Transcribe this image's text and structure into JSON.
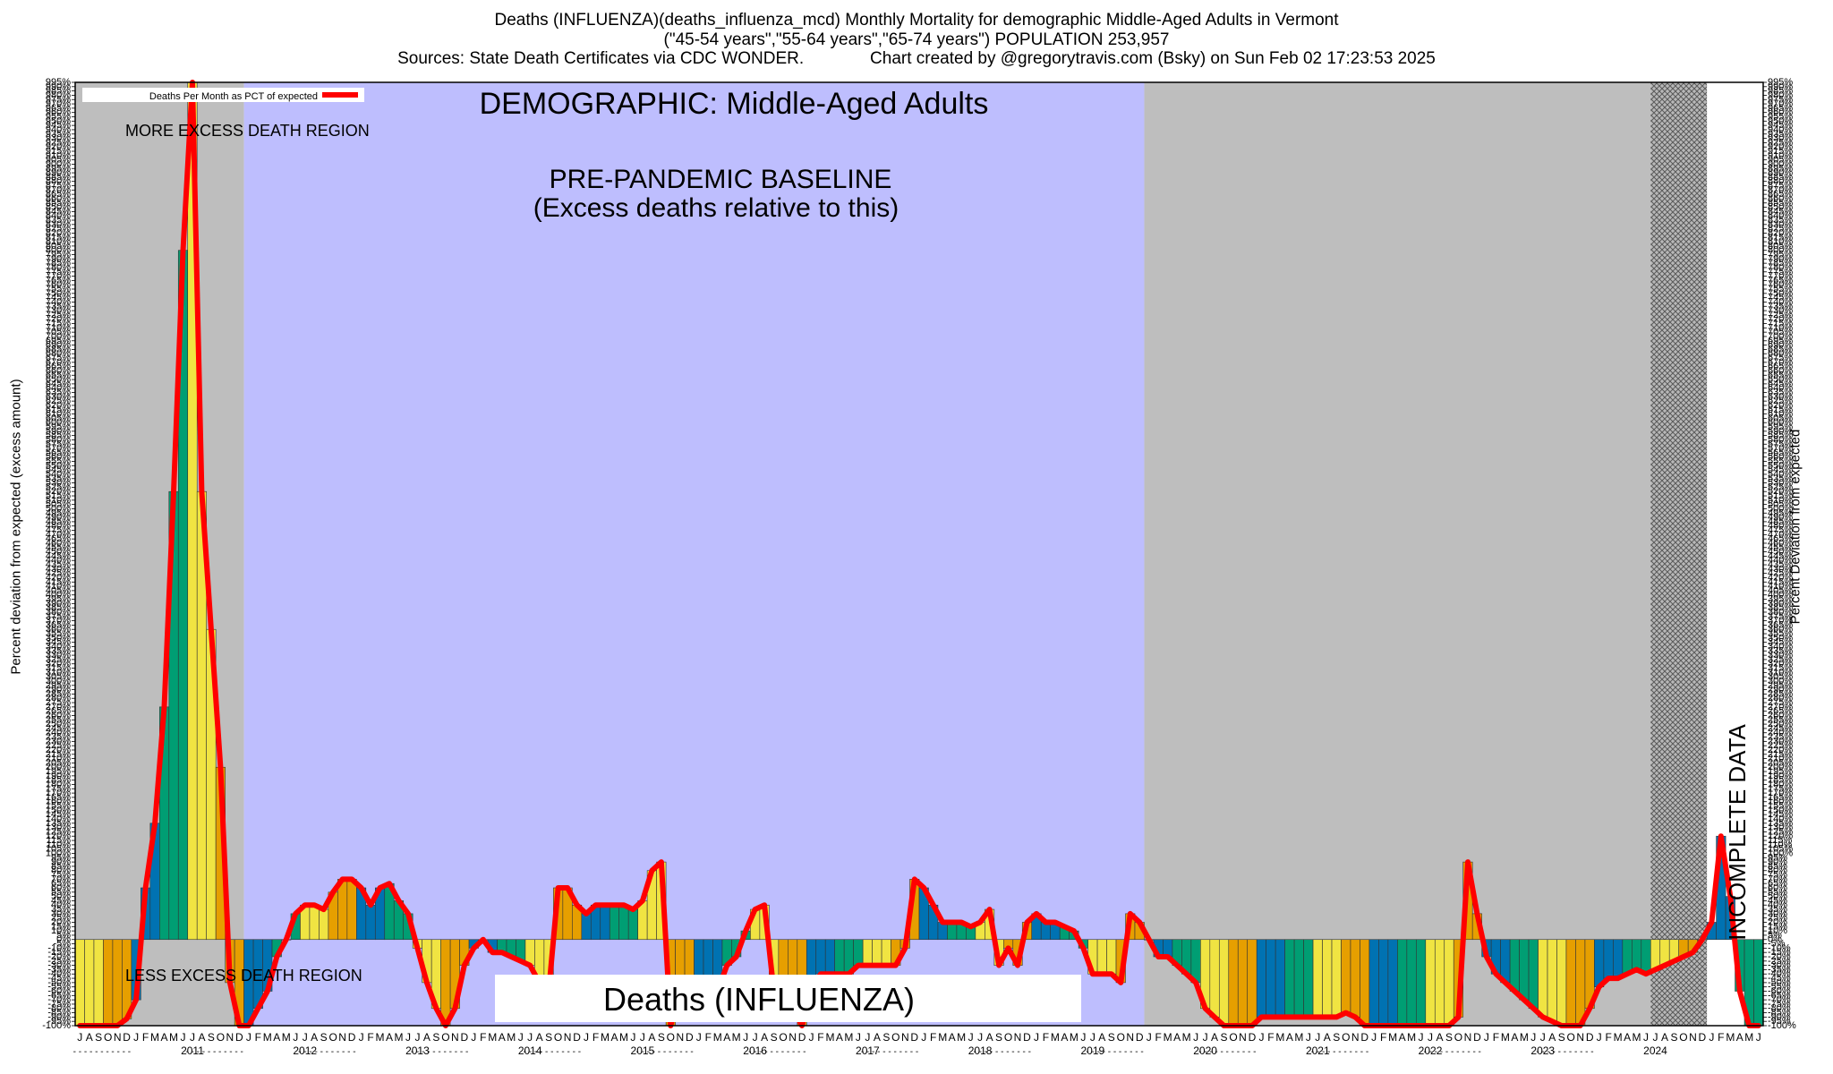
{
  "title": {
    "line1": "Deaths (INFLUENZA)(deaths_influenza_mcd) Monthly Mortality for demographic Middle-Aged Adults in Vermont",
    "line2": "(\"45-54 years\",\"55-64 years\",\"65-74 years\") POPULATION 253,957",
    "line3": "Sources: State Death Certificates via CDC WONDER.              Chart created by @gregorytravis.com (Bsky) on Sun Feb 02 17:23:53 2025"
  },
  "annotations": {
    "demographic": "DEMOGRAPHIC: Middle-Aged Adults",
    "baseline_line1": "PRE-PANDEMIC BASELINE",
    "baseline_line2": "(Excess deaths relative to this)",
    "more_region": "MORE EXCESS DEATH REGION",
    "less_region": "LESS EXCESS DEATH REGION",
    "cause_box": "Deaths (INFLUENZA)",
    "incomplete": "INCOMPLETE DATA"
  },
  "legend": {
    "label": "Deaths Per Month as PCT of expected"
  },
  "colors": {
    "background": "#ffffff",
    "grey_region": "#bebebe",
    "baseline_region": "#bebefe",
    "line": "#ff0000",
    "bar_palette": [
      "#f0e442",
      "#e69f00",
      "#0072b2",
      "#009e73"
    ]
  },
  "chart_data": {
    "type": "bar",
    "title": "Deaths (INFLUENZA)(deaths_influenza_mcd) Monthly Mortality for demographic Middle-Aged Adults in Vermont",
    "ylabel_left": "Percent deviation from expected (excess amount)",
    "ylabel_right": "Percent Deviation from expected",
    "ylim": [
      -100,
      995
    ],
    "y_ticks": [
      "-100%",
      "-95%",
      "-90%",
      "-85%",
      "-80%",
      "-75%",
      "-70%",
      "-65%",
      "-60%",
      "-55%",
      "-50%",
      "-45%",
      "-40%",
      "-35%",
      "-30%",
      "-25%",
      "-20%",
      "-15%",
      "-10%",
      "-5%",
      "0%",
      "5%",
      "10%",
      "15%",
      "20%",
      "25%",
      "30%",
      "35%",
      "40%",
      "45%",
      "50%",
      "55%",
      "60%",
      "65%",
      "70%",
      "75%",
      "80%",
      "85%",
      "90%",
      "95%",
      "100%",
      "105%",
      "110%",
      "115%",
      "120%",
      "125%",
      "130%",
      "135%",
      "140%",
      "145%",
      "150%",
      "155%",
      "160%",
      "165%",
      "170%",
      "175%",
      "180%",
      "185%",
      "190%",
      "195%",
      "200%",
      "205%",
      "210%",
      "215%",
      "220%",
      "225%",
      "230%",
      "235%",
      "240%",
      "245%",
      "250%",
      "255%",
      "260%",
      "265%",
      "270%",
      "275%",
      "280%",
      "285%",
      "290%",
      "295%",
      "300%",
      "305%",
      "310%",
      "315%",
      "320%",
      "325%",
      "330%",
      "335%",
      "340%",
      "345%",
      "350%",
      "355%",
      "360%",
      "365%",
      "370%",
      "375%",
      "380%",
      "385%",
      "390%",
      "395%",
      "400%",
      "405%",
      "410%",
      "415%",
      "420%",
      "425%",
      "430%",
      "435%",
      "440%",
      "445%",
      "450%",
      "455%",
      "460%",
      "465%",
      "470%",
      "475%",
      "480%",
      "485%",
      "490%",
      "495%",
      "500%",
      "505%",
      "510%",
      "515%",
      "520%",
      "525%",
      "530%",
      "535%",
      "540%",
      "545%",
      "550%",
      "555%",
      "560%",
      "565%",
      "570%",
      "575%",
      "580%",
      "585%",
      "590%",
      "595%",
      "600%",
      "605%",
      "610%",
      "615%",
      "620%",
      "625%",
      "630%",
      "635%",
      "640%",
      "645%",
      "650%",
      "655%",
      "660%",
      "665%",
      "670%",
      "675%",
      "680%",
      "685%",
      "690%",
      "695%",
      "700%",
      "705%",
      "710%",
      "715%",
      "720%",
      "725%",
      "730%",
      "735%",
      "740%",
      "745%",
      "750%",
      "755%",
      "760%",
      "765%",
      "770%",
      "775%",
      "780%",
      "785%",
      "790%",
      "795%",
      "800%",
      "805%",
      "810%",
      "815%",
      "820%",
      "825%",
      "830%",
      "835%",
      "840%",
      "845%",
      "850%",
      "855%",
      "860%",
      "865%",
      "870%",
      "875%",
      "880%",
      "885%",
      "890%",
      "895%",
      "900%",
      "905%",
      "910%",
      "915%",
      "920%",
      "925%",
      "930%",
      "935%",
      "940%",
      "945%",
      "950%",
      "955%",
      "960%",
      "965%",
      "970%",
      "975%",
      "980%",
      "985%",
      "990%",
      "995%"
    ],
    "start_month": "2010-07",
    "month_letters": [
      "J",
      "F",
      "M",
      "A",
      "M",
      "J",
      "J",
      "A",
      "S",
      "O",
      "N",
      "D"
    ],
    "years": [
      "2011",
      "2012",
      "2013",
      "2014",
      "2015",
      "2016",
      "2017",
      "2018",
      "2019",
      "2020",
      "2021",
      "2022",
      "2023",
      "2024"
    ],
    "regions": [
      {
        "name": "grey",
        "from_index": 0,
        "to_index": 18
      },
      {
        "name": "baseline",
        "from_index": 18,
        "to_index": 114
      },
      {
        "name": "grey",
        "from_index": 114,
        "to_index": 168
      },
      {
        "name": "incomplete",
        "from_index": 168,
        "to_index": 174
      }
    ],
    "series": [
      {
        "name": "Deaths Per Month as PCT of expected",
        "values": [
          -100,
          -100,
          -100,
          -100,
          -100,
          -92,
          -70,
          60,
          135,
          270,
          520,
          800,
          995,
          520,
          360,
          200,
          -50,
          -100,
          -100,
          -80,
          -60,
          -20,
          0,
          30,
          40,
          40,
          35,
          55,
          70,
          70,
          60,
          40,
          60,
          65,
          45,
          30,
          -10,
          -50,
          -80,
          -100,
          -80,
          -30,
          -10,
          0,
          -15,
          -15,
          -20,
          -25,
          -30,
          -50,
          -60,
          60,
          60,
          40,
          30,
          40,
          40,
          40,
          40,
          35,
          45,
          80,
          90,
          -100,
          -60,
          -60,
          -60,
          -60,
          -60,
          -30,
          -20,
          10,
          35,
          40,
          -60,
          -60,
          -80,
          -100,
          -60,
          -40,
          -40,
          -40,
          -40,
          -30,
          -30,
          -30,
          -30,
          -30,
          -10,
          70,
          60,
          40,
          20,
          20,
          20,
          15,
          20,
          35,
          -30,
          -10,
          -30,
          20,
          30,
          20,
          20,
          15,
          10,
          -10,
          -40,
          -40,
          -40,
          -50,
          30,
          20,
          0,
          -20,
          -20,
          -30,
          -40,
          -50,
          -80,
          -90,
          -100,
          -100,
          -100,
          -100,
          -90,
          -90,
          -90,
          -90,
          -90,
          -90,
          -90,
          -90,
          -90,
          -85,
          -90,
          -100,
          -100,
          -100,
          -100,
          -100,
          -100,
          -100,
          -100,
          -100,
          -100,
          -90,
          90,
          30,
          -20,
          -40,
          -50,
          -60,
          -70,
          -80,
          -90,
          -95,
          -100,
          -100,
          -100,
          -80,
          -55,
          -45,
          -45,
          -40,
          -35,
          -40,
          -35,
          -30,
          -25,
          -20,
          -15,
          0,
          20,
          120,
          50,
          -60,
          -100,
          -100
        ]
      }
    ]
  }
}
